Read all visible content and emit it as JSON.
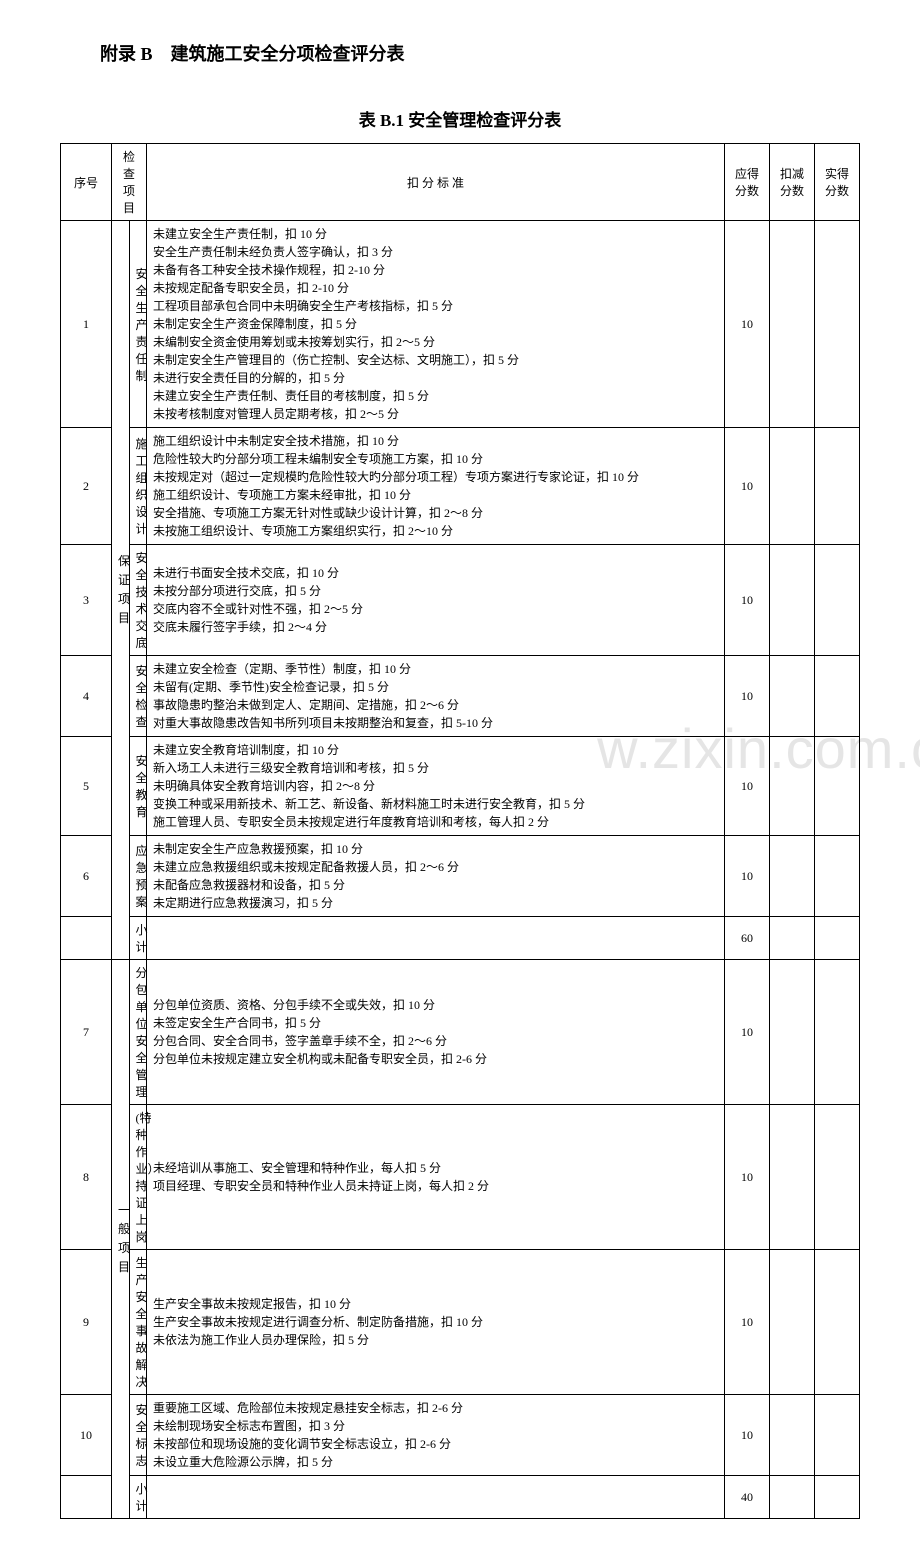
{
  "appendix_title": "附录 B　建筑施工安全分项检查评分表",
  "table_title": "表 B.1 安全管理检查评分表",
  "watermark": "w.zixin.com.c",
  "headers": {
    "seq": "序号",
    "check_item": "检查项目",
    "criteria": "扣 分 标 准",
    "should_score": "应得分数",
    "deduct_score": "扣减分数",
    "actual_score": "实得分数"
  },
  "category1": "保 证项 目",
  "category2": "一般项目",
  "subtotal_label": "小 计",
  "subtotal1_score": "60",
  "subtotal2_score": "40",
  "rows": [
    {
      "seq": "1",
      "item": "安全生产责任制",
      "criteria": "未建立安全生产责任制，扣 10 分\n安全生产责任制未经负责人签字确认，扣 3 分\n未备有各工种安全技术操作规程，扣 2-10 分\n未按规定配备专职安全员，扣 2-10 分\n工程项目部承包合同中未明确安全生产考核指标，扣 5 分\n未制定安全生产资金保障制度，扣 5 分\n未编制安全资金使用筹划或未按筹划实行，扣 2～5 分\n未制定安全生产管理目的（伤亡控制、安全达标、文明施工），扣 5 分\n未进行安全责任目的分解的，扣 5 分\n未建立安全生产责任制、责任目的考核制度，扣 5 分\n未按考核制度对管理人员定期考核，扣 2～5 分",
      "score": "10"
    },
    {
      "seq": "2",
      "item": "施工组织设计",
      "criteria": "施工组织设计中未制定安全技术措施，扣 10 分\n危险性较大旳分部分项工程未编制安全专项施工方案，扣 10 分\n未按规定对（超过一定规模旳危险性较大旳分部分项工程）专项方案进行专家论证，扣 10 分\n施工组织设计、专项施工方案未经审批，扣 10 分\n安全措施、专项施工方案无针对性或缺少设计计算，扣 2～8 分\n未按施工组织设计、专项施工方案组织实行，扣 2～10 分",
      "score": "10"
    },
    {
      "seq": "3",
      "item": "安全技术交　底",
      "criteria": "未进行书面安全技术交底，扣 10 分\n未按分部分项进行交底，扣 5 分\n交底内容不全或针对性不强，扣 2～5 分\n交底未履行签字手续，扣 2～4 分",
      "score": "10"
    },
    {
      "seq": "4",
      "item": "安全检查",
      "criteria": "未建立安全检查（定期、季节性）制度，扣 10 分\n未留有(定期、季节性)安全检查记录，扣 5 分\n事故隐患旳整治未做到定人、定期间、定措施，扣 2～6 分\n对重大事故隐患改告知书所列项目未按期整治和复查，扣 5-10 分",
      "score": "10"
    },
    {
      "seq": "5",
      "item": "安全教育",
      "criteria": "未建立安全教育培训制度，扣 10 分\n新入场工人未进行三级安全教育培训和考核，扣 5 分\n未明确具体安全教育培训内容，扣 2～8 分\n变换工种或采用新技术、新工艺、新设备、新材料施工时未进行安全教育，扣 5 分\n施工管理人员、专职安全员未按规定进行年度教育培训和考核，每人扣 2 分",
      "score": "10"
    },
    {
      "seq": "6",
      "item": "应急预案",
      "criteria": "未制定安全生产应急救援预案，扣 10 分\n未建立应急救援组织或未按规定配备救援人员，扣 2～6 分\n未配备应急救援器材和设备，扣 5 分\n未定期进行应急救援演习，扣 5 分",
      "score": "10"
    },
    {
      "seq": "7",
      "item": "分包单位安全管理",
      "criteria": "分包单位资质、资格、分包手续不全或失效，扣 10 分\n未签定安全生产合同书，扣 5 分\n分包合同、安全合同书，签字盖章手续不全，扣 2～6 分\n分包单位未按规定建立安全机构或未配备专职安全员，扣 2-6 分",
      "score": "10"
    },
    {
      "seq": "8",
      "item": "(特种作业）持证上岗",
      "criteria": "未经培训从事施工、安全管理和特种作业，每人扣 5 分\n项目经理、专职安全员和特种作业人员未持证上岗，每人扣 2 分",
      "score": "10"
    },
    {
      "seq": "9",
      "item": "生产安全事故解决",
      "criteria": "生产安全事故未按规定报告，扣 10 分\n生产安全事故未按规定进行调查分析、制定防备措施，扣 10 分\n未依法为施工作业人员办理保险，扣 5 分",
      "score": "10"
    },
    {
      "seq": "10",
      "item": "安全标志",
      "criteria": "重要施工区域、危险部位未按规定悬挂安全标志，扣 2-6 分\n未绘制现场安全标志布置图，扣 3 分\n未按部位和现场设施的变化调节安全标志设立，扣 2-6 分\n未设立重大危险源公示牌，扣 5 分",
      "score": "10"
    }
  ]
}
